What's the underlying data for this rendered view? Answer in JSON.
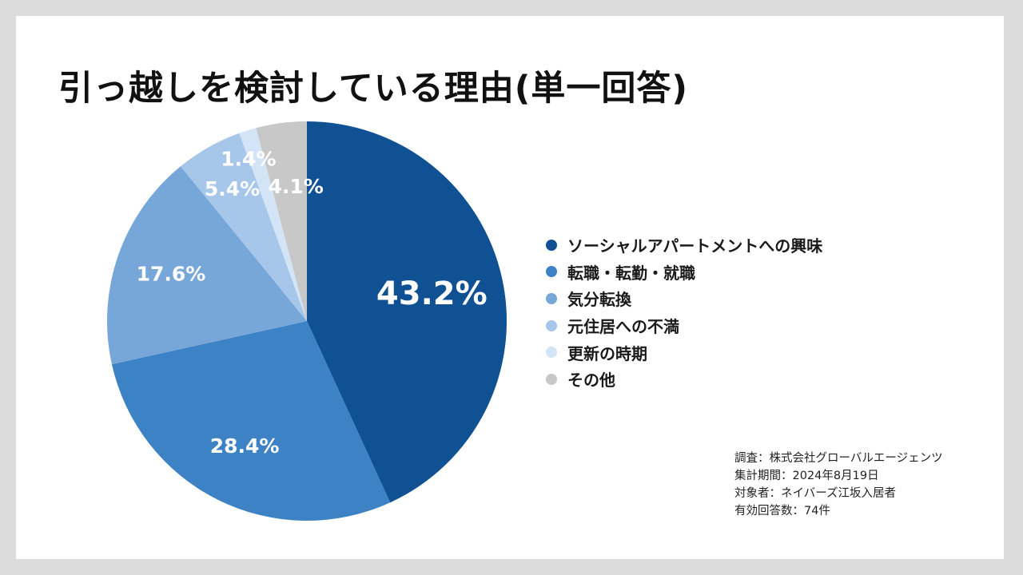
{
  "title": "引っ越しを検討している理由(単一回答)",
  "chart_data": {
    "type": "pie",
    "title": "引っ越しを検討している理由(単一回答)",
    "categories": [
      "ソーシャルアパートメントへの興味",
      "転職・転勤・就職",
      "気分転換",
      "元住居への不満",
      "更新の時期",
      "その他"
    ],
    "values": [
      43.2,
      28.4,
      17.6,
      5.4,
      1.4,
      4.1
    ],
    "labels": [
      "43.2%",
      "28.4%",
      "17.6%",
      "5.4%",
      "1.4%",
      "4.1%"
    ],
    "colors": [
      "#0f5192",
      "#3d82c4",
      "#77a7d9",
      "#a6c6ea",
      "#d3e4f6",
      "#c8c8c8"
    ],
    "legend_position": "right",
    "start": "top, clockwise"
  },
  "notes": {
    "survey": "調査：株式会社グローバルエージェンツ",
    "period": "集計期間：2024年8月19日",
    "target": "対象者：ネイバーズ江坂入居者",
    "responses": "有効回答数：74件"
  }
}
